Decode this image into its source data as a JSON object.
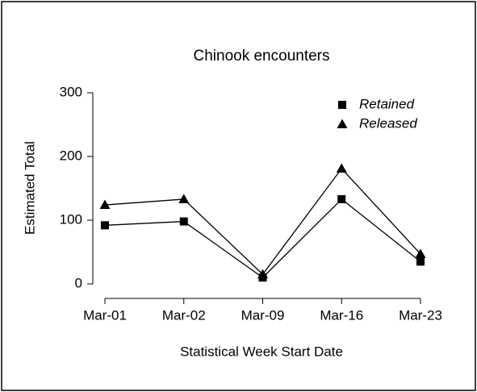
{
  "chart_data": {
    "type": "line",
    "title": "Chinook encounters",
    "xlabel": "Statistical Week Start Date",
    "ylabel": "Estimated Total",
    "categories": [
      "Mar-01",
      "Mar-02",
      "Mar-09",
      "Mar-16",
      "Mar-23"
    ],
    "series": [
      {
        "name": "Retained",
        "color": "#000000",
        "marker": "square",
        "values": [
          92,
          98,
          10,
          133,
          35
        ]
      },
      {
        "name": "Released",
        "color": "#000000",
        "marker": "triangle",
        "values": [
          124,
          133,
          15,
          181,
          47
        ]
      }
    ],
    "ylim": [
      0,
      300
    ],
    "yticks": [
      0,
      100,
      200,
      300
    ],
    "legend": "topright"
  }
}
